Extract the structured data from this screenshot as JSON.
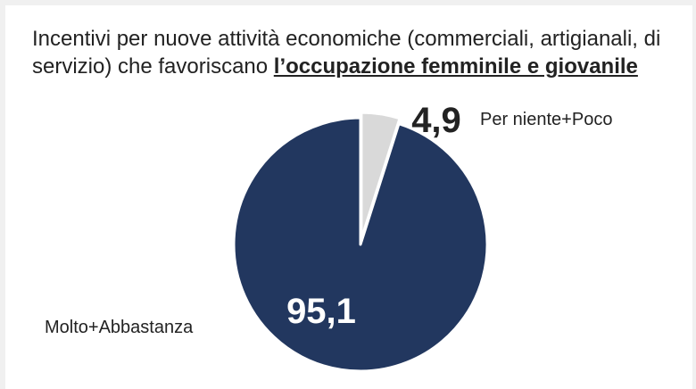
{
  "colors": {
    "background": "#ffffff",
    "large_slice": "#22375f",
    "small_slice": "#d9d9d9",
    "text": "#222222"
  },
  "chart_data": {
    "type": "pie",
    "title_parts": [
      {
        "text": "Incentivi per nuove attività economiche (commerciali, artigianali, di servizio) che favoriscano ",
        "emphasis": false
      },
      {
        "text": "l’occupazione femminile e giovanile",
        "emphasis": true
      }
    ],
    "slices": [
      {
        "label": "Per niente+Poco",
        "value": 4.9,
        "display": "4,9",
        "color": "#d9d9d9"
      },
      {
        "label": "Molto+Abbastanza",
        "value": 95.1,
        "display": "95,1",
        "color": "#22375f"
      }
    ],
    "start_angle_deg": 0,
    "direction": "clockwise",
    "legend": "none"
  }
}
